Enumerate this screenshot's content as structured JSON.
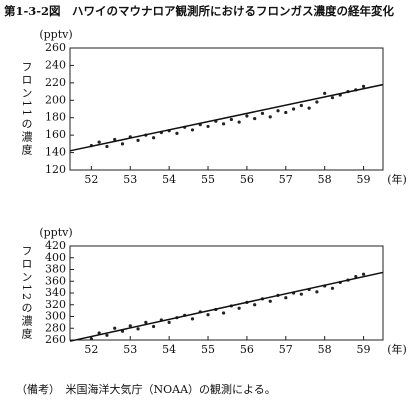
{
  "title": "第1-3-2図　ハワイのマウナロア観測所におけるフロンガス濃度の経年変化",
  "note": "（備考）　米国海洋大気庁（NOAA）の観測による。",
  "chart_data": [
    {
      "type": "scatter-trend",
      "y_label": "フロン11の濃度",
      "y_unit": "(pptv)",
      "x_unit": "(年)",
      "xlim": [
        51.45,
        59.5
      ],
      "xticks": [
        52,
        53,
        54,
        55,
        56,
        57,
        58,
        59
      ],
      "ylim": [
        120,
        260
      ],
      "yticks": [
        120,
        140,
        160,
        180,
        200,
        220,
        240,
        260
      ],
      "series": [
        {
          "style": "points",
          "color": "#222",
          "x": [
            52.0,
            52.2,
            52.4,
            52.6,
            52.8,
            53.0,
            53.2,
            53.4,
            53.6,
            53.8,
            54.0,
            54.2,
            54.4,
            54.6,
            54.8,
            55.0,
            55.2,
            55.4,
            55.6,
            55.8,
            56.0,
            56.2,
            56.4,
            56.6,
            56.8,
            57.0,
            57.2,
            57.4,
            57.6,
            57.8,
            58.0,
            58.2,
            58.4,
            58.6,
            58.8,
            59.0
          ],
          "values": [
            148,
            152,
            147,
            155,
            150,
            158,
            154,
            160,
            157,
            163,
            165,
            162,
            169,
            166,
            172,
            170,
            176,
            173,
            178,
            175,
            182,
            179,
            185,
            181,
            188,
            186,
            190,
            194,
            191,
            198,
            208,
            203,
            206,
            210,
            212,
            216
          ]
        },
        {
          "style": "line",
          "color": "#111",
          "x": [
            51.45,
            59.5
          ],
          "values": [
            142,
            218
          ]
        }
      ]
    },
    {
      "type": "scatter-trend",
      "y_label": "フロン12の濃度",
      "y_unit": "(pptv)",
      "x_unit": "(年)",
      "xlim": [
        51.45,
        59.5
      ],
      "xticks": [
        52,
        53,
        54,
        55,
        56,
        57,
        58,
        59
      ],
      "ylim": [
        260,
        420
      ],
      "yticks": [
        260,
        280,
        300,
        320,
        340,
        360,
        380,
        400,
        420
      ],
      "series": [
        {
          "style": "points",
          "color": "#222",
          "x": [
            52.0,
            52.2,
            52.4,
            52.6,
            52.8,
            53.0,
            53.2,
            53.4,
            53.6,
            53.8,
            54.0,
            54.2,
            54.4,
            54.6,
            54.8,
            55.0,
            55.2,
            55.4,
            55.6,
            55.8,
            56.0,
            56.2,
            56.4,
            56.6,
            56.8,
            57.0,
            57.2,
            57.4,
            57.6,
            57.8,
            58.0,
            58.2,
            58.4,
            58.6,
            58.8,
            59.0
          ],
          "values": [
            262,
            272,
            268,
            280,
            275,
            284,
            279,
            290,
            283,
            294,
            290,
            298,
            302,
            296,
            308,
            303,
            312,
            306,
            318,
            314,
            324,
            320,
            330,
            326,
            336,
            332,
            340,
            338,
            346,
            342,
            352,
            348,
            358,
            362,
            368,
            372
          ]
        },
        {
          "style": "line",
          "color": "#111",
          "x": [
            51.45,
            59.5
          ],
          "values": [
            258,
            375
          ]
        }
      ]
    }
  ]
}
